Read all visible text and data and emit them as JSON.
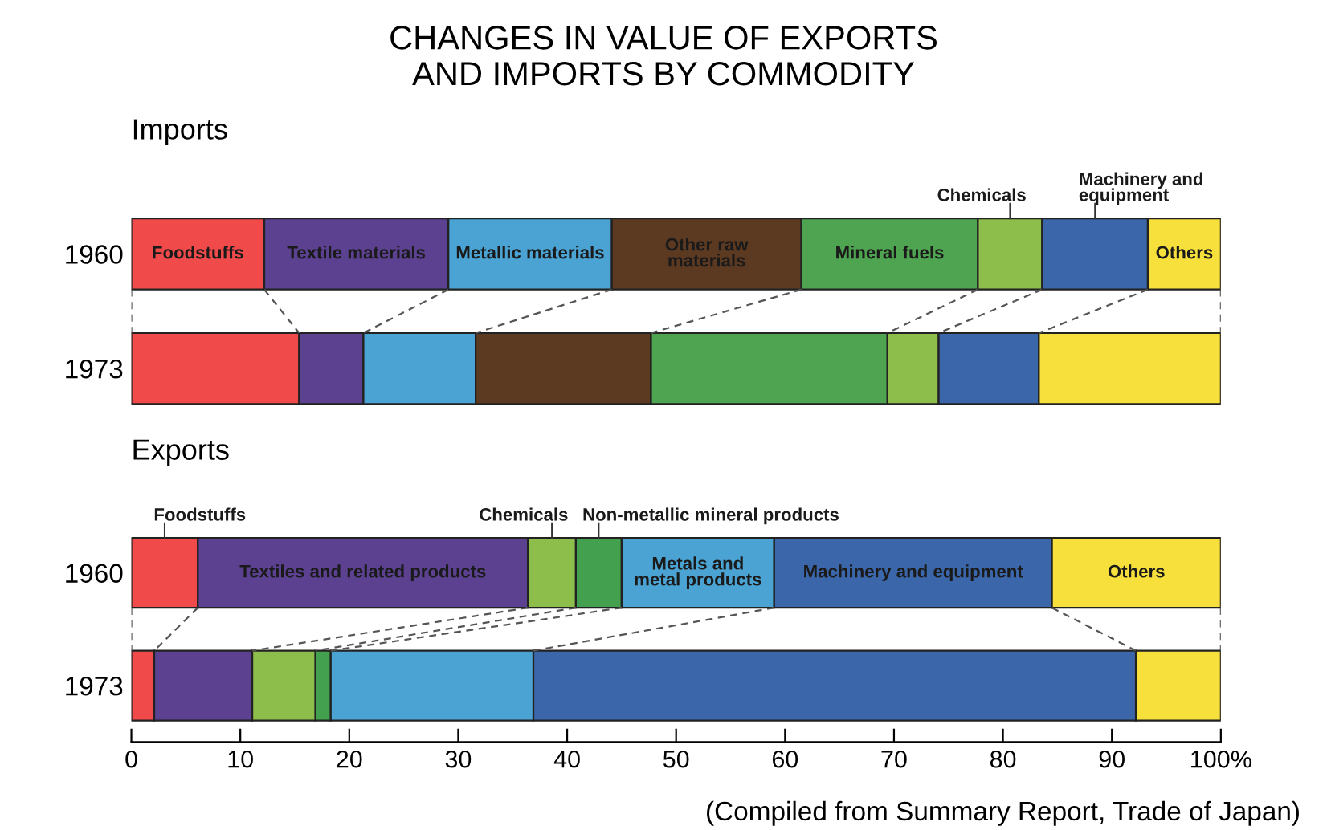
{
  "chart_data": [
    {
      "type": "bar",
      "orientation": "horizontal",
      "stacked": true,
      "title": "CHANGES IN VALUE OF EXPORTS\nAND IMPORTS BY COMMODITY",
      "subtitle": "Imports",
      "categories": [
        "1960",
        "1973"
      ],
      "xlim": [
        0,
        100
      ],
      "tick_labels": "y",
      "series": [
        {
          "name": "Foodstuffs",
          "color": "#f04a4a",
          "values": [
            12.2,
            15.4
          ]
        },
        {
          "name": "Textile materials",
          "color": "#5b4190",
          "values": [
            16.9,
            5.9
          ]
        },
        {
          "name": "Metallic materials",
          "color": "#4ba3d3",
          "values": [
            15.0,
            10.3
          ]
        },
        {
          "name": "Other raw\nmaterials",
          "color": "#5c3a22",
          "values": [
            17.4,
            16.1
          ]
        },
        {
          "name": "Mineral fuels",
          "color": "#4fa452",
          "values": [
            16.2,
            21.7
          ]
        },
        {
          "name": "Chemicals",
          "color": "#8dbd4a",
          "values": [
            5.9,
            4.7
          ]
        },
        {
          "name": "Machinery and\nequipment",
          "color": "#3b66aa",
          "values": [
            9.7,
            9.2
          ]
        },
        {
          "name": "Others",
          "color": "#f7e03c",
          "values": [
            6.7,
            16.7
          ]
        }
      ]
    },
    {
      "type": "bar",
      "orientation": "horizontal",
      "stacked": true,
      "title": "Exports",
      "categories": [
        "1960",
        "1973"
      ],
      "xlim": [
        0,
        100
      ],
      "xticks": [
        0,
        10,
        20,
        30,
        40,
        50,
        60,
        70,
        80,
        90,
        {
          "value": 100,
          "label": "100%"
        }
      ],
      "annotations": [
        "(Compiled from Summary Report, Trade of Japan)"
      ],
      "series": [
        {
          "name": "Foodstuffs",
          "color": "#f04a4a",
          "values": [
            6.1,
            2.1
          ]
        },
        {
          "name": "Textiles and related products",
          "color": "#5b4190",
          "values": [
            30.3,
            9.0
          ]
        },
        {
          "name": "Chemicals",
          "color": "#8dbd4a",
          "values": [
            4.4,
            5.8
          ]
        },
        {
          "name": "Non-metallic mineral products",
          "color": "#42a04e",
          "values": [
            4.2,
            1.4
          ]
        },
        {
          "name": "Metals and\nmetal products",
          "color": "#4ba3d3",
          "values": [
            14.0,
            18.6
          ]
        },
        {
          "name": "Machinery and equipment",
          "color": "#3b66aa",
          "values": [
            25.5,
            55.3
          ]
        },
        {
          "name": "Others",
          "color": "#f7e03c",
          "values": [
            15.5,
            7.8
          ]
        }
      ]
    }
  ]
}
